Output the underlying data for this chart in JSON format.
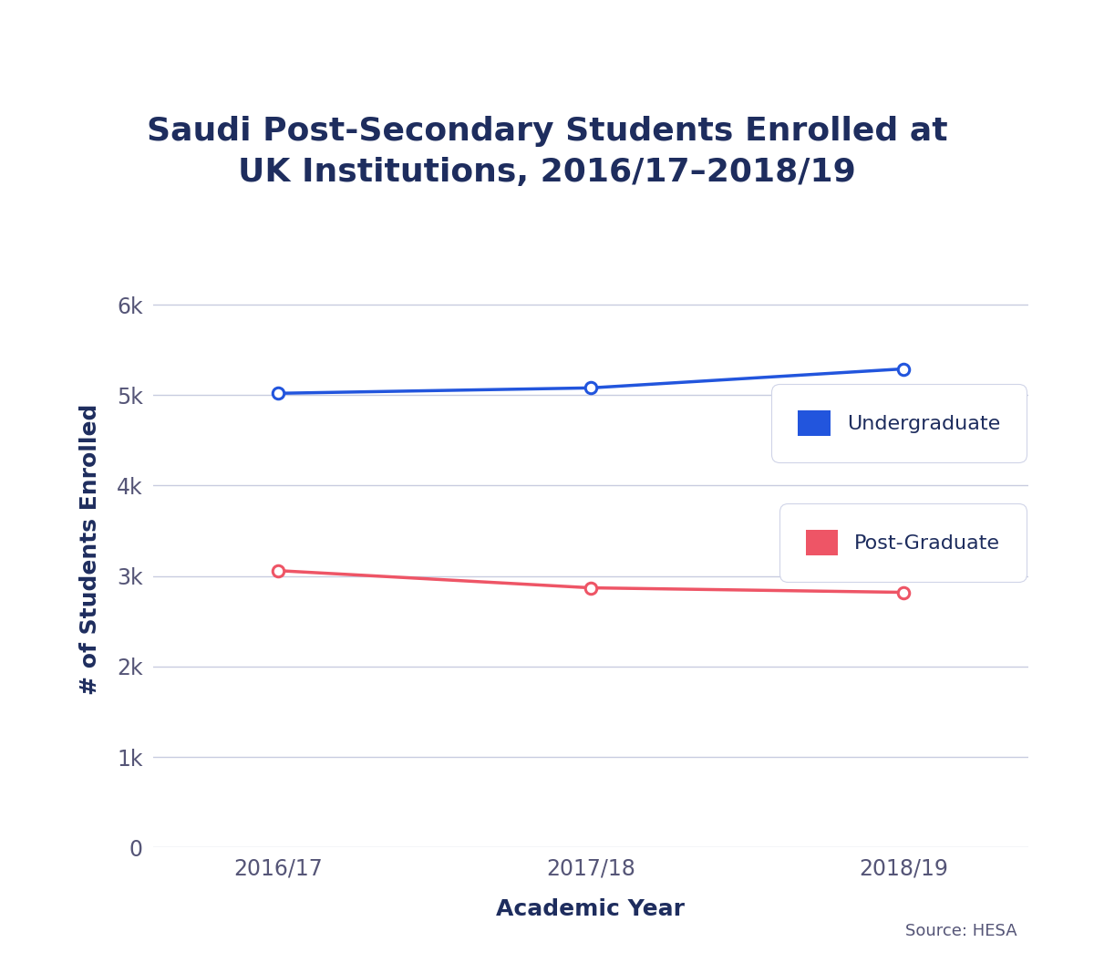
{
  "title": "Saudi Post-Secondary Students Enrolled at\nUK Institutions, 2016/17–2018/19",
  "xlabel": "Academic Year",
  "ylabel": "# of Students Enrolled",
  "years": [
    "2016/17",
    "2017/18",
    "2018/19"
  ],
  "undergraduate": [
    5020,
    5080,
    5290
  ],
  "postgraduate": [
    3060,
    2870,
    2820
  ],
  "undergrad_color": "#2255dd",
  "postgrad_color": "#ee5566",
  "undergrad_label": "Undergraduate",
  "postgrad_label": "Post-Graduate",
  "yticks": [
    0,
    1000,
    2000,
    3000,
    4000,
    5000,
    6000
  ],
  "ytick_labels": [
    "0",
    "1k",
    "2k",
    "3k",
    "4k",
    "5k",
    "6k"
  ],
  "ylim": [
    0,
    6600
  ],
  "title_color": "#1e2d5e",
  "axis_label_color": "#1e2d5e",
  "tick_color": "#555577",
  "grid_color": "#c8cce0",
  "bg_color": "#ffffff",
  "source_text": "Source: HESA",
  "title_fontsize": 26,
  "axis_label_fontsize": 18,
  "tick_fontsize": 17,
  "legend_fontsize": 16,
  "source_fontsize": 13
}
